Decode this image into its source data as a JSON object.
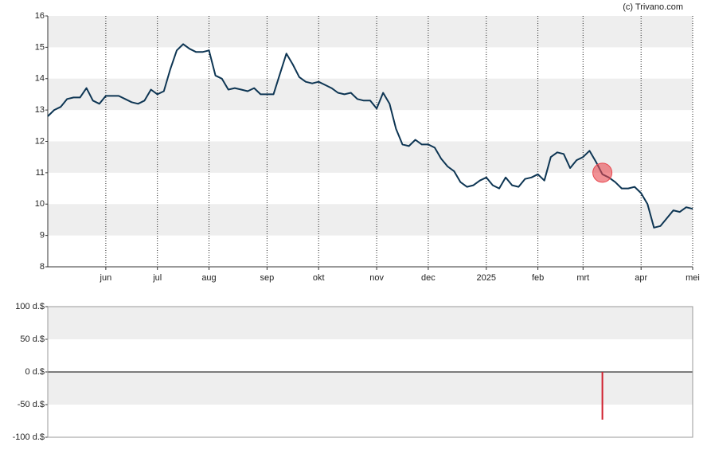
{
  "credit": "(c) Trivano.com",
  "chart_data": [
    {
      "type": "line",
      "color": "#0d3553",
      "ylim": [
        8,
        16
      ],
      "yticks": [
        8,
        9,
        10,
        11,
        12,
        13,
        14,
        15,
        16
      ],
      "bands": true,
      "grid": true,
      "categories": [
        null,
        null,
        null,
        null,
        null,
        null,
        null,
        null,
        null,
        "jun",
        null,
        null,
        null,
        null,
        null,
        null,
        null,
        "jul",
        null,
        null,
        null,
        null,
        null,
        null,
        null,
        "aug",
        null,
        null,
        null,
        null,
        null,
        null,
        null,
        null,
        "sep",
        null,
        null,
        null,
        null,
        null,
        null,
        null,
        "okt",
        null,
        null,
        null,
        null,
        null,
        null,
        null,
        null,
        "nov",
        null,
        null,
        null,
        null,
        null,
        null,
        null,
        "dec",
        null,
        null,
        null,
        null,
        null,
        null,
        null,
        null,
        "2025",
        null,
        null,
        null,
        null,
        null,
        null,
        null,
        "feb",
        null,
        null,
        null,
        null,
        null,
        null,
        "mrt",
        null,
        null,
        null,
        null,
        null,
        null,
        null,
        null,
        "apr",
        null,
        null,
        null,
        null,
        null,
        null,
        null,
        "mei"
      ],
      "values": [
        12.8,
        13.0,
        13.1,
        13.35,
        13.4,
        13.4,
        13.7,
        13.3,
        13.2,
        13.45,
        13.45,
        13.45,
        13.35,
        13.25,
        13.2,
        13.3,
        13.65,
        13.5,
        13.6,
        14.3,
        14.9,
        15.1,
        14.95,
        14.85,
        14.85,
        14.9,
        14.1,
        14.0,
        13.65,
        13.7,
        13.65,
        13.6,
        13.7,
        13.5,
        13.5,
        13.5,
        14.15,
        14.8,
        14.45,
        14.05,
        13.9,
        13.85,
        13.9,
        13.8,
        13.7,
        13.55,
        13.5,
        13.55,
        13.35,
        13.3,
        13.3,
        13.05,
        13.55,
        13.2,
        12.4,
        11.9,
        11.85,
        12.05,
        11.9,
        11.9,
        11.8,
        11.45,
        11.2,
        11.05,
        10.7,
        10.55,
        10.6,
        10.75,
        10.85,
        10.6,
        10.5,
        10.85,
        10.6,
        10.55,
        10.8,
        10.85,
        10.95,
        10.75,
        11.5,
        11.65,
        11.6,
        11.15,
        11.4,
        11.5,
        11.7,
        11.35,
        10.95,
        10.85,
        10.7,
        10.5,
        10.5,
        10.55,
        10.35,
        10.0,
        9.25,
        9.3,
        9.55,
        9.8,
        9.75,
        9.9,
        9.85
      ],
      "markers": {
        "color": "#e8474e",
        "values": [
          null,
          null,
          null,
          null,
          null,
          null,
          null,
          null,
          null,
          null,
          null,
          null,
          null,
          null,
          null,
          null,
          null,
          null,
          null,
          null,
          null,
          null,
          null,
          null,
          null,
          null,
          null,
          null,
          null,
          null,
          null,
          null,
          null,
          null,
          null,
          null,
          null,
          null,
          null,
          null,
          null,
          null,
          null,
          null,
          null,
          null,
          null,
          null,
          null,
          null,
          null,
          null,
          null,
          null,
          null,
          null,
          null,
          null,
          null,
          null,
          null,
          null,
          null,
          null,
          null,
          null,
          null,
          null,
          null,
          null,
          null,
          null,
          null,
          null,
          null,
          null,
          null,
          null,
          null,
          null,
          null,
          null,
          null,
          null,
          null,
          null,
          11.0,
          null,
          null,
          null,
          null,
          null,
          null,
          null,
          null,
          null,
          null,
          null,
          null,
          null,
          null
        ]
      }
    },
    {
      "type": "bar",
      "color": "#d0202e",
      "ylim": [
        -100,
        100
      ],
      "bands": true,
      "zero_line": true,
      "yticks": [
        {
          "value": -100,
          "label": "-100 d.$"
        },
        {
          "value": -50,
          "label": "-50 d.$"
        },
        {
          "value": 0,
          "label": "0 d.$"
        },
        {
          "value": 50,
          "label": "50 d.$"
        },
        {
          "value": 100,
          "label": "100 d.$"
        }
      ],
      "values": [
        null,
        null,
        null,
        null,
        null,
        null,
        null,
        null,
        null,
        null,
        null,
        null,
        null,
        null,
        null,
        null,
        null,
        null,
        null,
        null,
        null,
        null,
        null,
        null,
        null,
        null,
        null,
        null,
        null,
        null,
        null,
        null,
        null,
        null,
        null,
        null,
        null,
        null,
        null,
        null,
        null,
        null,
        null,
        null,
        null,
        null,
        null,
        null,
        null,
        null,
        null,
        null,
        null,
        null,
        null,
        null,
        null,
        null,
        null,
        null,
        null,
        null,
        null,
        null,
        null,
        null,
        null,
        null,
        null,
        null,
        null,
        null,
        null,
        null,
        null,
        null,
        null,
        null,
        null,
        null,
        null,
        null,
        null,
        null,
        null,
        null,
        -73,
        null,
        null,
        null,
        null,
        null,
        null,
        null,
        null,
        null,
        null,
        null,
        null,
        null,
        null
      ]
    }
  ]
}
